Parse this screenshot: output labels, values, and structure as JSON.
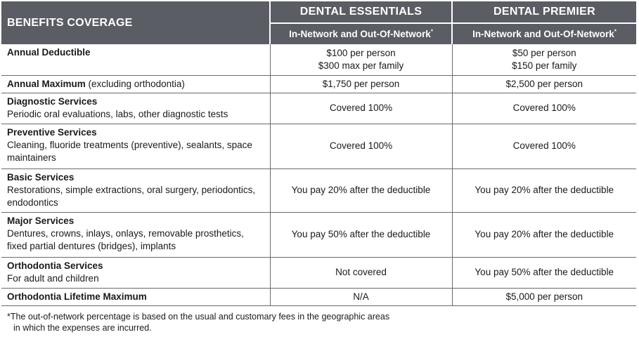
{
  "header": {
    "coverage_label": "BENEFITS COVERAGE",
    "plans": [
      {
        "name": "DENTAL ESSENTIALS",
        "subtitle": "In-Network and Out-Of-Network",
        "marker": "*"
      },
      {
        "name": "DENTAL PREMIER",
        "subtitle": "In-Network and Out-Of-Network",
        "marker": "*"
      }
    ]
  },
  "rows": [
    {
      "name": "Annual Deductible",
      "inline_note": "",
      "description": "",
      "essentials": [
        "$100 per person",
        "$300 max per family"
      ],
      "premier": [
        "$50 per person",
        "$150 per family"
      ]
    },
    {
      "name": "Annual Maximum",
      "inline_note": " (excluding orthodontia)",
      "description": "",
      "essentials": [
        "$1,750 per person"
      ],
      "premier": [
        "$2,500 per person"
      ]
    },
    {
      "name": "Diagnostic Services",
      "inline_note": "",
      "description": "Periodic oral evaluations, labs, other diagnostic tests",
      "essentials": [
        "Covered 100%"
      ],
      "premier": [
        "Covered 100%"
      ]
    },
    {
      "name": "Preventive Services",
      "inline_note": "",
      "description": "Cleaning, fluoride treatments (preventive), sealants, space maintainers",
      "essentials": [
        "Covered 100%"
      ],
      "premier": [
        "Covered 100%"
      ]
    },
    {
      "name": "Basic Services",
      "inline_note": "",
      "description": "Restorations, simple extractions, oral surgery, periodontics, endodontics",
      "essentials": [
        "You pay 20% after the deductible"
      ],
      "premier": [
        "You pay 20% after the deductible"
      ]
    },
    {
      "name": "Major Services",
      "inline_note": "",
      "description": "Dentures, crowns, inlays, onlays, removable prosthetics, fixed partial dentures (bridges), implants",
      "essentials": [
        "You pay 50% after the deductible"
      ],
      "premier": [
        "You pay 20% after the deductible"
      ]
    },
    {
      "name": "Orthodontia Services",
      "inline_note": "",
      "description": "For adult and children",
      "essentials": [
        "Not covered"
      ],
      "premier": [
        "You pay 50% after the deductible"
      ]
    },
    {
      "name": "Orthodontia Lifetime Maximum",
      "inline_note": "",
      "description": "",
      "essentials": [
        "N/A"
      ],
      "premier": [
        "$5,000 per person"
      ]
    }
  ],
  "footnote": {
    "line1": "*The out-of-network percentage is based on the usual and customary fees in the geographic areas",
    "line2": "in which the expenses are incurred."
  },
  "colors": {
    "header_bg": "#5a5d63",
    "header_text": "#ffffff",
    "rule": "#6a6a6a"
  }
}
